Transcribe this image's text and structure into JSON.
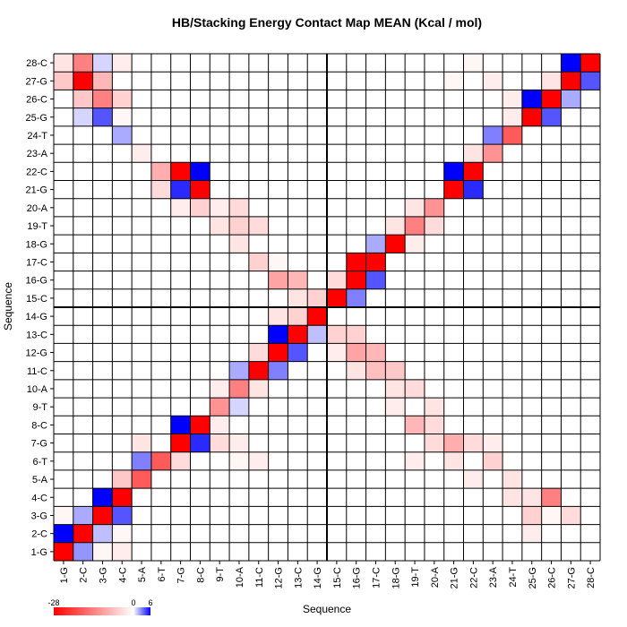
{
  "chart_data": {
    "type": "heatmap",
    "title": "HB/Stacking Energy Contact Map MEAN (Kcal / mol)",
    "xlabel": "Sequence",
    "ylabel": "Sequence",
    "labels": [
      "1-G",
      "2-C",
      "3-G",
      "4-C",
      "5-A",
      "6-T",
      "7-G",
      "8-C",
      "9-T",
      "10-A",
      "11-C",
      "12-G",
      "13-C",
      "14-G",
      "15-C",
      "16-G",
      "17-C",
      "18-G",
      "19-T",
      "20-A",
      "21-G",
      "22-C",
      "23-A",
      "24-T",
      "25-G",
      "26-C",
      "27-G",
      "28-C"
    ],
    "color_range": [
      -28,
      6
    ],
    "colorbar_ticks": [
      "-28",
      "0",
      "6"
    ],
    "colors": {
      "negative": "#ff0000",
      "zero": "#ffffff",
      "positive": "#0000ff",
      "grid": "#000000"
    },
    "strand_divider": {
      "after_residue": "14-G"
    },
    "cells": [
      [
        1,
        1,
        -28
      ],
      [
        1,
        2,
        6
      ],
      [
        2,
        1,
        2.5
      ],
      [
        2,
        2,
        -28
      ],
      [
        1,
        3,
        -1
      ],
      [
        3,
        1,
        -1
      ],
      [
        3,
        3,
        -28
      ],
      [
        3,
        4,
        6
      ],
      [
        4,
        3,
        4
      ],
      [
        4,
        4,
        -28
      ],
      [
        2,
        3,
        2
      ],
      [
        3,
        2,
        1.5
      ],
      [
        1,
        28,
        -3
      ],
      [
        2,
        28,
        -14
      ],
      [
        1,
        27,
        -6
      ],
      [
        2,
        27,
        -28
      ],
      [
        3,
        27,
        -8
      ],
      [
        3,
        28,
        1
      ],
      [
        2,
        26,
        -6
      ],
      [
        3,
        26,
        -14
      ],
      [
        4,
        26,
        -5
      ],
      [
        4,
        25,
        -1
      ],
      [
        4,
        28,
        -2
      ],
      [
        3,
        25,
        4
      ],
      [
        4,
        24,
        2
      ],
      [
        2,
        25,
        1
      ],
      [
        4,
        1,
        -2
      ],
      [
        4,
        2,
        -1
      ],
      [
        4,
        5,
        -6
      ],
      [
        5,
        5,
        -18
      ],
      [
        5,
        6,
        3
      ],
      [
        6,
        6,
        -18
      ],
      [
        5,
        7,
        -3
      ],
      [
        6,
        22,
        -9
      ],
      [
        7,
        22,
        -28
      ],
      [
        8,
        22,
        6
      ],
      [
        7,
        21,
        5
      ],
      [
        8,
        21,
        -28
      ],
      [
        6,
        21,
        -4
      ],
      [
        7,
        20,
        -2
      ],
      [
        8,
        20,
        -5
      ],
      [
        5,
        23,
        -2
      ],
      [
        7,
        6,
        -4
      ],
      [
        7,
        7,
        -28
      ],
      [
        7,
        8,
        6
      ],
      [
        8,
        7,
        5
      ],
      [
        8,
        8,
        -28
      ],
      [
        9,
        9,
        -12
      ],
      [
        10,
        10,
        -14
      ],
      [
        11,
        11,
        -28
      ],
      [
        12,
        12,
        -28
      ],
      [
        12,
        13,
        6
      ],
      [
        13,
        12,
        4
      ],
      [
        13,
        13,
        -28
      ],
      [
        14,
        14,
        -28
      ],
      [
        13,
        14,
        -5
      ],
      [
        14,
        13,
        1.5
      ],
      [
        9,
        10,
        -2
      ],
      [
        10,
        9,
        1
      ],
      [
        10,
        11,
        2
      ],
      [
        11,
        10,
        -3
      ],
      [
        11,
        12,
        -4
      ],
      [
        12,
        11,
        3
      ],
      [
        14,
        15,
        -5
      ],
      [
        13,
        15,
        -3
      ],
      [
        12,
        14,
        -3
      ],
      [
        11,
        17,
        -5
      ],
      [
        10,
        18,
        -3
      ],
      [
        12,
        16,
        -10
      ],
      [
        13,
        16,
        -8
      ],
      [
        11,
        19,
        -4
      ],
      [
        10,
        19,
        -5
      ],
      [
        9,
        20,
        -2
      ],
      [
        12,
        17,
        -1
      ],
      [
        10,
        20,
        -4
      ],
      [
        9,
        19,
        -3
      ],
      [
        15,
        15,
        -28
      ],
      [
        16,
        15,
        3
      ],
      [
        15,
        16,
        -4
      ],
      [
        16,
        16,
        -28
      ],
      [
        17,
        16,
        4
      ],
      [
        16,
        17,
        -28
      ],
      [
        17,
        17,
        -28
      ],
      [
        17,
        18,
        2
      ],
      [
        18,
        18,
        -28
      ],
      [
        19,
        19,
        -14
      ],
      [
        20,
        20,
        -12
      ],
      [
        18,
        19,
        -3
      ],
      [
        19,
        18,
        -2
      ],
      [
        20,
        19,
        -4
      ],
      [
        19,
        20,
        -3
      ],
      [
        21,
        21,
        -28
      ],
      [
        21,
        22,
        6
      ],
      [
        22,
        21,
        5
      ],
      [
        22,
        22,
        -28
      ],
      [
        23,
        23,
        -12
      ],
      [
        24,
        24,
        -18
      ],
      [
        23,
        24,
        3
      ],
      [
        22,
        23,
        -3
      ],
      [
        25,
        25,
        -28
      ],
      [
        25,
        26,
        6
      ],
      [
        26,
        25,
        4
      ],
      [
        26,
        26,
        -28
      ],
      [
        27,
        27,
        -28
      ],
      [
        27,
        28,
        6
      ],
      [
        28,
        27,
        4
      ],
      [
        28,
        28,
        -28
      ],
      [
        26,
        27,
        -3
      ],
      [
        27,
        26,
        2
      ],
      [
        25,
        3,
        -5
      ],
      [
        26,
        4,
        -14
      ],
      [
        27,
        3,
        -4
      ],
      [
        25,
        4,
        -3
      ],
      [
        25,
        2,
        -2
      ],
      [
        24,
        5,
        -3
      ],
      [
        23,
        6,
        -5
      ],
      [
        26,
        3,
        -1
      ],
      [
        24,
        26,
        -2
      ],
      [
        23,
        27,
        -2
      ],
      [
        22,
        28,
        -1
      ],
      [
        24,
        25,
        -2
      ],
      [
        21,
        27,
        -1
      ],
      [
        9,
        7,
        -4
      ],
      [
        9,
        8,
        -2
      ],
      [
        10,
        7,
        -2
      ],
      [
        11,
        6,
        -2
      ],
      [
        10,
        6,
        -1
      ],
      [
        17,
        12,
        -8
      ],
      [
        16,
        12,
        -10
      ],
      [
        16,
        13,
        -5
      ],
      [
        17,
        11,
        -7
      ],
      [
        18,
        11,
        -6
      ],
      [
        18,
        10,
        -3
      ],
      [
        19,
        10,
        -4
      ],
      [
        20,
        9,
        -3
      ],
      [
        15,
        13,
        -5
      ],
      [
        16,
        11,
        -3
      ],
      [
        15,
        12,
        -2
      ],
      [
        18,
        9,
        -2
      ],
      [
        19,
        8,
        -8
      ],
      [
        20,
        8,
        -4
      ],
      [
        21,
        7,
        -9
      ],
      [
        20,
        7,
        -4
      ],
      [
        21,
        6,
        -3
      ],
      [
        22,
        7,
        -4
      ],
      [
        19,
        6,
        -2
      ],
      [
        23,
        7,
        -2
      ],
      [
        22,
        5,
        -2
      ],
      [
        24,
        4,
        -3
      ]
    ]
  }
}
